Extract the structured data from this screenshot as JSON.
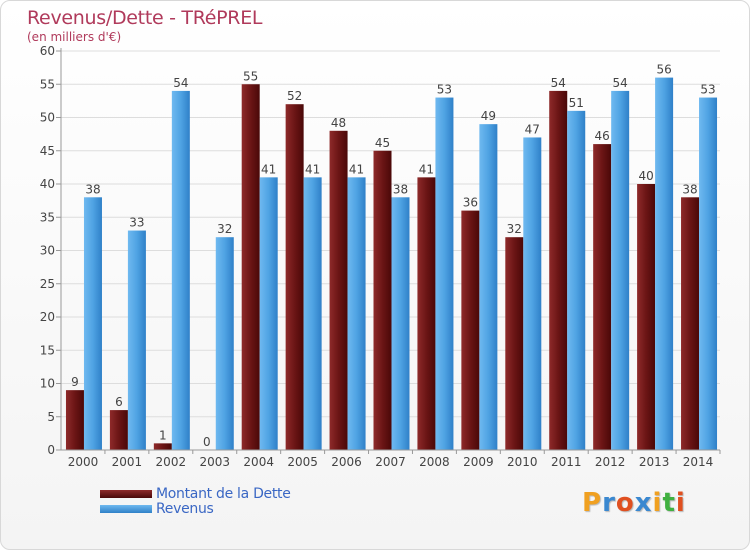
{
  "chart_data": {
    "type": "bar",
    "title": "Revenus/Dette - TRéPREL",
    "subtitle": "(en milliers d'€)",
    "categories": [
      "2000",
      "2001",
      "2002",
      "2003",
      "2004",
      "2005",
      "2006",
      "2007",
      "2008",
      "2009",
      "2010",
      "2011",
      "2012",
      "2013",
      "2014"
    ],
    "series": [
      {
        "name": "Montant de la Dette",
        "color": "#7a1e1e",
        "values": [
          9,
          6,
          1,
          0,
          55,
          52,
          48,
          45,
          41,
          36,
          32,
          54,
          46,
          40,
          38
        ]
      },
      {
        "name": "Revenus",
        "color": "#4fa3e3",
        "values": [
          38,
          33,
          54,
          32,
          41,
          41,
          41,
          38,
          53,
          49,
          47,
          51,
          54,
          56,
          53
        ]
      }
    ],
    "ylim": [
      0,
      60
    ],
    "yticks": [
      0,
      5,
      10,
      15,
      20,
      25,
      30,
      35,
      40,
      45,
      50,
      55,
      60
    ],
    "grid": true,
    "legend_position": "bottom-left"
  },
  "logo_text": "Proxiti",
  "logo_colors": [
    "#f0a020",
    "#3a88d0",
    "#e05020",
    "#3a88d0",
    "#f0a020",
    "#40b040",
    "#e05020"
  ]
}
